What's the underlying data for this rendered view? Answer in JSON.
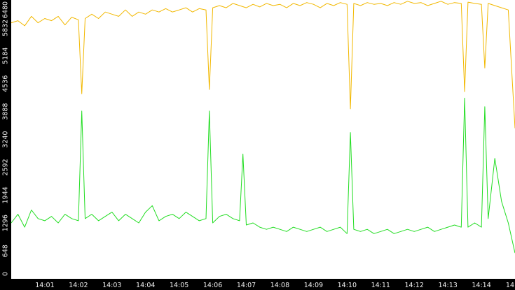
{
  "chart_data": {
    "type": "line",
    "title": "",
    "xlabel": "",
    "ylabel": "",
    "ylim": [
      0,
      6480
    ],
    "xlim": [
      0,
      15
    ],
    "y_ticks": [
      {
        "value": 0,
        "label": "0"
      },
      {
        "value": 648,
        "label": "648"
      },
      {
        "value": 1296,
        "label": "1296"
      },
      {
        "value": 1944,
        "label": "1944"
      },
      {
        "value": 2592,
        "label": "2592"
      },
      {
        "value": 3240,
        "label": "3240"
      },
      {
        "value": 3888,
        "label": "3888"
      },
      {
        "value": 4536,
        "label": "4536"
      },
      {
        "value": 5184,
        "label": "5184"
      },
      {
        "value": 5832,
        "label": "5832"
      },
      {
        "value": 6480,
        "label": "6480"
      }
    ],
    "x_ticks": [
      {
        "value": 1,
        "label": "14:01"
      },
      {
        "value": 2,
        "label": "14:02"
      },
      {
        "value": 3,
        "label": "14:03"
      },
      {
        "value": 4,
        "label": "14:04"
      },
      {
        "value": 5,
        "label": "14:05"
      },
      {
        "value": 6,
        "label": "14:06"
      },
      {
        "value": 7,
        "label": "14:07"
      },
      {
        "value": 8,
        "label": "14:08"
      },
      {
        "value": 9,
        "label": "14:09"
      },
      {
        "value": 10,
        "label": "14:10"
      },
      {
        "value": 11,
        "label": "14:11"
      },
      {
        "value": 12,
        "label": "14:12"
      },
      {
        "value": 13,
        "label": "14:13"
      },
      {
        "value": 14,
        "label": "14:14"
      },
      {
        "value": 15,
        "label": "14"
      }
    ],
    "grid": false,
    "legend": "none",
    "colors": {
      "background": "#ffffff",
      "axis_band": "#000000",
      "tick_text": "#f0f0f0",
      "series_upper": "#f2b800",
      "series_lower": "#22dd22"
    },
    "series": [
      {
        "color": "#f2b800",
        "x": [
          0.0,
          0.2,
          0.4,
          0.6,
          0.8,
          1.0,
          1.2,
          1.4,
          1.6,
          1.8,
          2.0,
          2.1,
          2.2,
          2.4,
          2.6,
          2.8,
          3.0,
          3.2,
          3.4,
          3.6,
          3.8,
          4.0,
          4.2,
          4.4,
          4.6,
          4.8,
          5.0,
          5.2,
          5.4,
          5.6,
          5.8,
          5.9,
          6.0,
          6.2,
          6.4,
          6.6,
          6.8,
          7.0,
          7.2,
          7.4,
          7.6,
          7.8,
          8.0,
          8.2,
          8.4,
          8.6,
          8.8,
          9.0,
          9.2,
          9.4,
          9.6,
          9.8,
          10.0,
          10.1,
          10.2,
          10.4,
          10.6,
          10.8,
          11.0,
          11.2,
          11.4,
          11.6,
          11.8,
          12.0,
          12.2,
          12.4,
          12.6,
          12.8,
          13.0,
          13.2,
          13.4,
          13.5,
          13.6,
          13.8,
          14.0,
          14.1,
          14.2,
          14.4,
          14.6,
          14.8,
          15.0
        ],
        "y": [
          5950,
          6000,
          5880,
          6100,
          5950,
          6050,
          6000,
          6100,
          5900,
          6080,
          6020,
          4300,
          6050,
          6150,
          6050,
          6200,
          6150,
          6100,
          6250,
          6100,
          6200,
          6150,
          6250,
          6200,
          6280,
          6200,
          6250,
          6300,
          6200,
          6280,
          6250,
          4400,
          6300,
          6350,
          6300,
          6400,
          6350,
          6300,
          6380,
          6320,
          6400,
          6350,
          6380,
          6300,
          6400,
          6350,
          6420,
          6380,
          6300,
          6400,
          6350,
          6420,
          6380,
          3950,
          6400,
          6350,
          6420,
          6380,
          6400,
          6350,
          6420,
          6380,
          6450,
          6400,
          6420,
          6350,
          6400,
          6450,
          6380,
          6420,
          6400,
          4350,
          6430,
          6400,
          6380,
          4900,
          6400,
          6350,
          6300,
          6250,
          3500
        ]
      },
      {
        "color": "#22dd22",
        "x": [
          0.0,
          0.2,
          0.4,
          0.6,
          0.8,
          1.0,
          1.2,
          1.4,
          1.6,
          1.8,
          2.0,
          2.1,
          2.2,
          2.4,
          2.6,
          2.8,
          3.0,
          3.2,
          3.4,
          3.6,
          3.8,
          4.0,
          4.2,
          4.4,
          4.6,
          4.8,
          5.0,
          5.2,
          5.4,
          5.6,
          5.8,
          5.9,
          6.0,
          6.2,
          6.4,
          6.6,
          6.8,
          6.9,
          7.0,
          7.2,
          7.4,
          7.6,
          7.8,
          8.0,
          8.2,
          8.4,
          8.6,
          8.8,
          9.0,
          9.2,
          9.4,
          9.6,
          9.8,
          10.0,
          10.1,
          10.2,
          10.4,
          10.6,
          10.8,
          11.0,
          11.2,
          11.4,
          11.6,
          11.8,
          12.0,
          12.2,
          12.4,
          12.6,
          12.8,
          13.0,
          13.2,
          13.4,
          13.5,
          13.6,
          13.8,
          14.0,
          14.1,
          14.2,
          14.4,
          14.6,
          14.8,
          15.0
        ],
        "y": [
          1300,
          1500,
          1200,
          1600,
          1400,
          1350,
          1450,
          1300,
          1500,
          1400,
          1350,
          3900,
          1400,
          1500,
          1350,
          1450,
          1550,
          1350,
          1500,
          1400,
          1300,
          1550,
          1700,
          1350,
          1450,
          1500,
          1400,
          1550,
          1450,
          1350,
          1400,
          3900,
          1300,
          1450,
          1500,
          1400,
          1350,
          2900,
          1250,
          1300,
          1200,
          1150,
          1200,
          1150,
          1100,
          1200,
          1150,
          1100,
          1150,
          1200,
          1100,
          1150,
          1200,
          1050,
          3400,
          1150,
          1100,
          1150,
          1050,
          1100,
          1150,
          1050,
          1100,
          1150,
          1100,
          1150,
          1200,
          1100,
          1150,
          1200,
          1250,
          1200,
          4200,
          1200,
          1300,
          1200,
          4000,
          1400,
          2800,
          1800,
          1300,
          600
        ]
      }
    ]
  }
}
